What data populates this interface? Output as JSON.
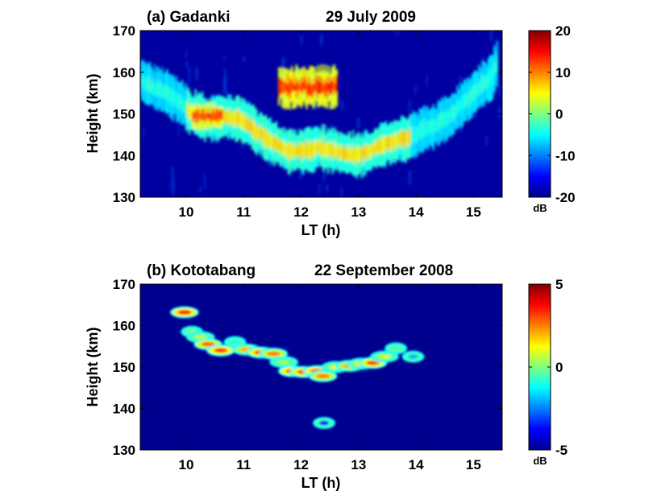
{
  "chart_data": [
    {
      "type": "heatmap",
      "panel_label": "(a) Gadanki",
      "date": "29 July 2009",
      "xlabel": "LT (h)",
      "ylabel": "Height (km)",
      "xlim": [
        9.2,
        15.5
      ],
      "ylim": [
        130,
        170
      ],
      "xticks": [
        "10",
        "11",
        "12",
        "13",
        "14",
        "15"
      ],
      "yticks": [
        "130",
        "140",
        "150",
        "160",
        "170"
      ],
      "colorbar": {
        "ticks": [
          "-20",
          "-10",
          "0",
          "10",
          "20"
        ],
        "range": [
          -20,
          20
        ],
        "unit": "dB",
        "colormap": "jet"
      },
      "layer_trace": {
        "x": [
          9.2,
          9.5,
          9.8,
          10.0,
          10.3,
          10.6,
          10.9,
          11.2,
          11.5,
          11.8,
          12.0,
          12.3,
          12.6,
          12.9,
          13.2,
          13.5,
          13.8,
          14.1,
          14.4,
          14.7,
          15.0,
          15.3,
          15.4
        ],
        "y": [
          158,
          156,
          154,
          151,
          149,
          149,
          149,
          146,
          143,
          141,
          141,
          142,
          141,
          140,
          141,
          143,
          144,
          146,
          148,
          151,
          155,
          159,
          162
        ],
        "peak_dB": 3
      },
      "patches": [
        {
          "x_range": [
            11.6,
            12.6
          ],
          "y_range": [
            151,
            162
          ],
          "peak_dB": 16
        },
        {
          "x_range": [
            10.1,
            10.6
          ],
          "y_range": [
            146,
            153
          ],
          "peak_dB": 15
        }
      ]
    },
    {
      "type": "heatmap",
      "panel_label": "(b) Kototabang",
      "date": "22 September 2008",
      "xlabel": "LT (h)",
      "ylabel": "Height (km)",
      "xlim": [
        9.2,
        15.5
      ],
      "ylim": [
        130,
        170
      ],
      "xticks": [
        "10",
        "11",
        "12",
        "13",
        "14",
        "15"
      ],
      "yticks": [
        "130",
        "140",
        "150",
        "160",
        "170"
      ],
      "colorbar": {
        "ticks": [
          "-5",
          "0",
          "5"
        ],
        "range": [
          -5,
          5
        ],
        "unit": "dB",
        "colormap": "jet"
      },
      "echoes": [
        {
          "x": 9.97,
          "y": 163.2,
          "dB": 3.5
        },
        {
          "x": 10.1,
          "y": 158.5,
          "dB": 0.0
        },
        {
          "x": 10.25,
          "y": 157.2,
          "dB": 0.5
        },
        {
          "x": 10.38,
          "y": 155.5,
          "dB": 2.8
        },
        {
          "x": 10.6,
          "y": 154.0,
          "dB": 3.2
        },
        {
          "x": 10.85,
          "y": 156.0,
          "dB": -1.0
        },
        {
          "x": 11.05,
          "y": 154.2,
          "dB": 2.0
        },
        {
          "x": 11.3,
          "y": 153.5,
          "dB": 3.0
        },
        {
          "x": 11.52,
          "y": 153.2,
          "dB": 2.5
        },
        {
          "x": 11.7,
          "y": 151.2,
          "dB": 0.2
        },
        {
          "x": 11.85,
          "y": 149.0,
          "dB": 3.2
        },
        {
          "x": 12.05,
          "y": 148.8,
          "dB": 3.0
        },
        {
          "x": 12.28,
          "y": 149.0,
          "dB": 3.5
        },
        {
          "x": 12.38,
          "y": 147.8,
          "dB": 2.5
        },
        {
          "x": 12.6,
          "y": 150.0,
          "dB": 1.0
        },
        {
          "x": 12.85,
          "y": 150.3,
          "dB": 2.2
        },
        {
          "x": 13.05,
          "y": 150.8,
          "dB": 1.5
        },
        {
          "x": 13.25,
          "y": 151.0,
          "dB": 3.0
        },
        {
          "x": 13.45,
          "y": 152.5,
          "dB": 0.8
        },
        {
          "x": 13.65,
          "y": 154.5,
          "dB": -0.5
        },
        {
          "x": 13.95,
          "y": 152.5,
          "dB": -2.0
        },
        {
          "x": 12.4,
          "y": 136.5,
          "dB": -3.5
        }
      ]
    }
  ]
}
